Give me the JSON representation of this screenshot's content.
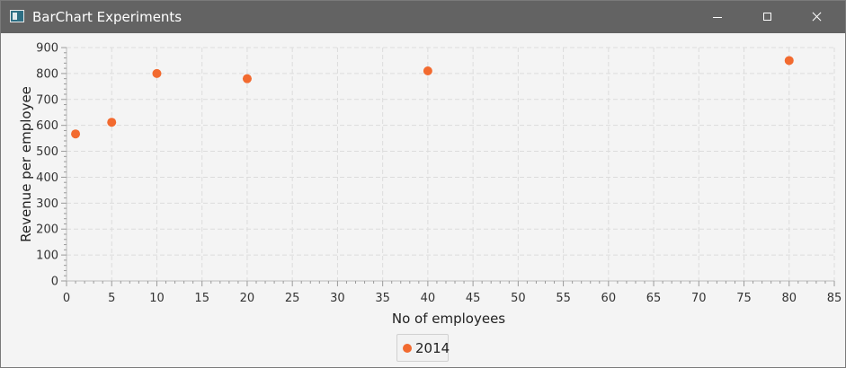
{
  "window": {
    "title": "BarChart Experiments",
    "minimize_icon": "minimize-icon",
    "maximize_icon": "maximize-icon",
    "close_icon": "close-icon"
  },
  "chart_data": {
    "type": "scatter",
    "title": "",
    "xlabel": "No of employees",
    "ylabel": "Revenue per employee",
    "xlim": [
      0,
      85
    ],
    "ylim": [
      0,
      900
    ],
    "xticks": [
      0,
      5,
      10,
      15,
      20,
      25,
      30,
      35,
      40,
      45,
      50,
      55,
      60,
      65,
      70,
      75,
      80,
      85
    ],
    "yticks": [
      0,
      100,
      200,
      300,
      400,
      500,
      600,
      700,
      800,
      900
    ],
    "grid": true,
    "legend_position": "bottom",
    "series": [
      {
        "name": "2014",
        "color": "#f26a2f",
        "points": [
          {
            "x": 1,
            "y": 567
          },
          {
            "x": 5,
            "y": 612
          },
          {
            "x": 10,
            "y": 800
          },
          {
            "x": 20,
            "y": 780
          },
          {
            "x": 40,
            "y": 810
          },
          {
            "x": 80,
            "y": 850
          }
        ]
      }
    ]
  }
}
